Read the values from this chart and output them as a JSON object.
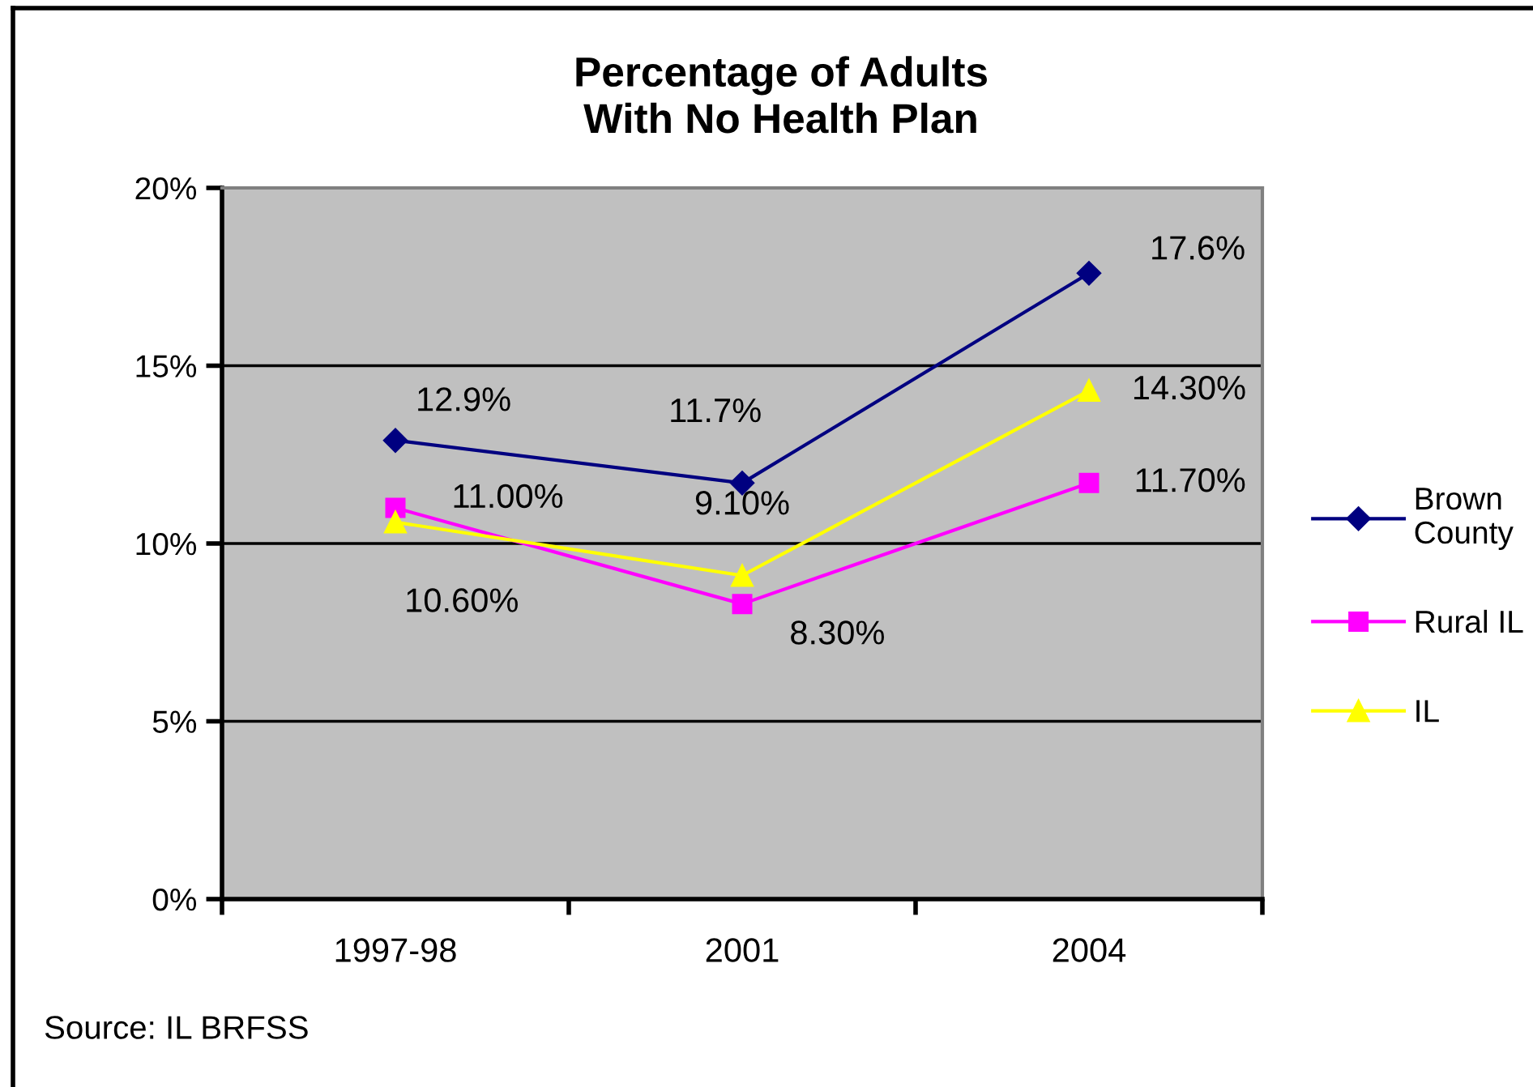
{
  "chart_data": {
    "type": "line",
    "title": "Percentage of Adults\nWith No Health Plan",
    "categories": [
      "1997-98",
      "2001",
      "2004"
    ],
    "series": [
      {
        "name": "Brown County",
        "color": "#000080",
        "marker": "diamond",
        "values": [
          12.9,
          11.7,
          17.6
        ],
        "value_labels": [
          "12.9%",
          "11.7%",
          "17.6%"
        ]
      },
      {
        "name": "Rural IL",
        "color": "#ff00ff",
        "marker": "square",
        "values": [
          11.0,
          8.3,
          11.7
        ],
        "value_labels": [
          "11.00%",
          "8.30%",
          "11.70%"
        ]
      },
      {
        "name": "IL",
        "color": "#ffff00",
        "marker": "triangle",
        "values": [
          10.6,
          9.1,
          14.3
        ],
        "value_labels": [
          "10.60%",
          "9.10%",
          "14.30%"
        ]
      }
    ],
    "ylim": [
      0,
      20
    ],
    "yticks": [
      {
        "value": 0,
        "label": "0%"
      },
      {
        "value": 5,
        "label": "5%"
      },
      {
        "value": 10,
        "label": "10%"
      },
      {
        "value": 15,
        "label": "15%"
      },
      {
        "value": 20,
        "label": "20%"
      }
    ],
    "grid": "y",
    "legend": "right",
    "annotations": [
      "Source: IL BRFSS"
    ]
  }
}
